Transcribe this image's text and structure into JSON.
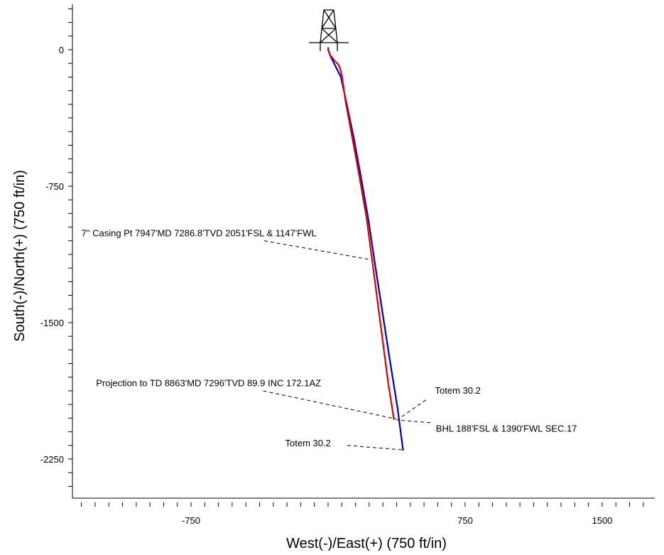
{
  "chart_data": {
    "type": "line",
    "xlabel": "West(-)/East(+)  (750  ft/in)",
    "ylabel": "South(-)/North(+)  (750  ft/in)",
    "x_ticks": [
      -750,
      0,
      750,
      1500
    ],
    "x_tick_labels": [
      "-750",
      "",
      "750",
      "1500"
    ],
    "y_ticks": [
      0,
      -750,
      -1500,
      -2250
    ],
    "y_tick_labels": [
      "0",
      "-750",
      "-1500",
      "-2250"
    ],
    "xlim": [
      -1400,
      1815
    ],
    "ylim": [
      -2470,
      250
    ],
    "grid": false,
    "colors": {
      "actual": "#e00000",
      "plan": "#0000c0",
      "leader": "#000000"
    },
    "icon": "drilling-rig-icon",
    "series": [
      {
        "key": "plan",
        "x": [
          0,
          15,
          40,
          70,
          100,
          140,
          180,
          220,
          260,
          300,
          340,
          380,
          410
        ],
        "y": [
          0,
          -40,
          -90,
          -150,
          -290,
          -480,
          -700,
          -930,
          -1200,
          -1460,
          -1720,
          -1970,
          -2200
        ]
      },
      {
        "key": "actual",
        "x": [
          0,
          5,
          10,
          20,
          35,
          55,
          65,
          75,
          95,
          130,
          170,
          210,
          240,
          270,
          300,
          330,
          360
        ],
        "y": [
          10,
          -15,
          -30,
          -40,
          -60,
          -80,
          -100,
          -140,
          -280,
          -470,
          -690,
          -920,
          -1150,
          -1380,
          -1610,
          -1840,
          -2030
        ]
      }
    ],
    "annotations": [
      {
        "text": "7\" Casing Pt 7947'MD 7286.8'TVD 2051'FSL & 1147'FWL",
        "target": [
          238,
          -1155
        ],
        "leader_from": [
          -350,
          -1050
        ],
        "label_at": [
          -1350,
          -1025
        ],
        "anchor": "start"
      },
      {
        "text": "Projection to TD 8863'MD 7296'TVD  89.9 INC 172.1AZ",
        "target": [
          375,
          -2030
        ],
        "leader_from": [
          -355,
          -1875
        ],
        "label_at": [
          -1270,
          -1850
        ],
        "anchor": "start"
      },
      {
        "text": "Totem  30.2",
        "target": [
          385,
          -2030
        ],
        "leader_from": [
          535,
          -1925
        ],
        "label_at": [
          585,
          -1890
        ],
        "anchor": "start"
      },
      {
        "text": "BHL 188'FSL & 1390'FWL SEC.17",
        "target": [
          375,
          -2035
        ],
        "leader_from": [
          560,
          -2050
        ],
        "label_at": [
          590,
          -2100
        ],
        "anchor": "start"
      },
      {
        "text": "Totem  30.2",
        "target": [
          415,
          -2200
        ],
        "leader_from": [
          105,
          -2175
        ],
        "label_at": [
          -235,
          -2180
        ],
        "anchor": "start"
      }
    ]
  }
}
